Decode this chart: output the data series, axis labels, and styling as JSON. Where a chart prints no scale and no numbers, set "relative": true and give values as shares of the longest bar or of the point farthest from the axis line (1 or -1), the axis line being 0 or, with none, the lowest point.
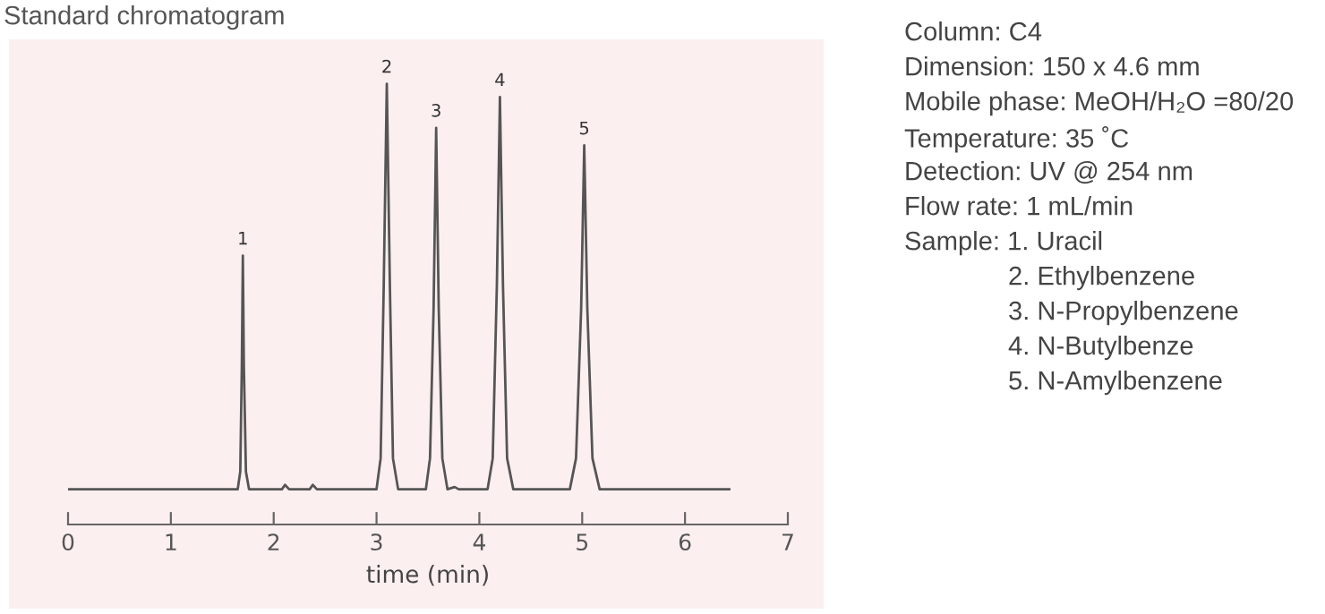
{
  "chart_data": {
    "type": "line",
    "title": "Standard chromatogram",
    "xlabel": "time (min)",
    "relative": true,
    "xlim": [
      0,
      7
    ],
    "xticks": [
      0,
      1,
      2,
      3,
      4,
      5,
      6,
      7
    ],
    "grid": false,
    "legend": false,
    "marker": "none",
    "line_style": "solid",
    "tick_labels": "x",
    "series": [
      {
        "color": "#555555",
        "x": [
          0,
          1.45,
          1.5,
          1.65,
          1.675,
          1.69,
          1.7,
          1.71,
          1.73,
          1.76,
          2.08,
          2.11,
          2.15,
          2.35,
          2.38,
          2.42,
          2.82,
          2.9,
          3.0,
          3.04,
          3.07,
          3.1,
          3.13,
          3.16,
          3.21,
          3.48,
          3.52,
          3.555,
          3.58,
          3.605,
          3.64,
          3.69,
          3.76,
          3.8,
          4.08,
          4.13,
          4.17,
          4.2,
          4.23,
          4.27,
          4.33,
          4.88,
          4.94,
          4.99,
          5.02,
          5.05,
          5.1,
          5.17,
          6.43
        ],
        "values": [
          0.08,
          0.08,
          0.08,
          0.08,
          0.12,
          0.36,
          0.61,
          0.36,
          0.12,
          0.08,
          0.08,
          0.09,
          0.08,
          0.08,
          0.09,
          0.08,
          0.08,
          0.08,
          0.08,
          0.15,
          0.54,
          1.0,
          0.54,
          0.15,
          0.08,
          0.08,
          0.15,
          0.49,
          0.9,
          0.49,
          0.15,
          0.08,
          0.085,
          0.08,
          0.08,
          0.15,
          0.54,
          0.97,
          0.54,
          0.15,
          0.08,
          0.08,
          0.15,
          0.49,
          0.86,
          0.49,
          0.15,
          0.08,
          0.08
        ]
      }
    ],
    "annotations": [
      {
        "text": "1",
        "x": 1.7,
        "y": 0.61
      },
      {
        "text": "2",
        "x": 3.1,
        "y": 1.0
      },
      {
        "text": "3",
        "x": 3.58,
        "y": 0.9
      },
      {
        "text": "4",
        "x": 4.2,
        "y": 0.97
      },
      {
        "text": "5",
        "x": 5.02,
        "y": 0.86
      },
      "Column: C4",
      "Dimension: 150 x 4.6 mm",
      "Mobile phase: MeOH/H₂O =80/20",
      "Temperature: 35 ˚C",
      "Detection: UV @ 254 nm",
      "Flow rate: 1 mL/min",
      "Sample: 1. Uracil",
      "2. Ethylbenzene",
      "3. N-Propylbenzene",
      "4. N-Butylbenze",
      "5. N-Amylbenzene"
    ]
  }
}
